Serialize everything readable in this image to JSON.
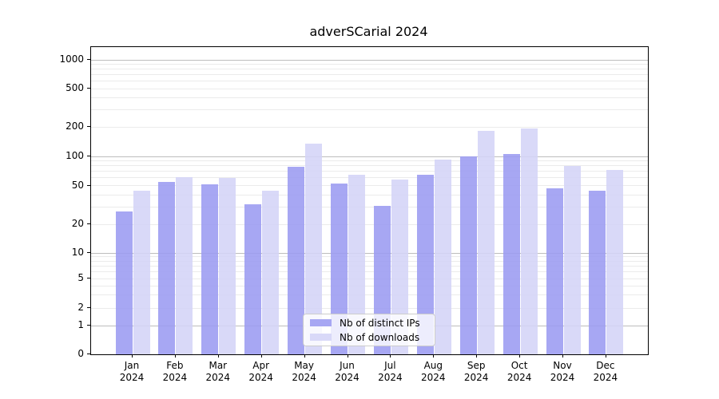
{
  "title": "adverSCarial 2024",
  "chart_data": {
    "type": "bar",
    "title": "adverSCarial 2024",
    "xlabel": "",
    "ylabel": "",
    "yscale": "symlog",
    "yticks": [
      0,
      1,
      2,
      5,
      10,
      20,
      50,
      100,
      200,
      500,
      1000
    ],
    "ylim": [
      0,
      1350
    ],
    "grid": "on",
    "legend_position": "lower center",
    "categories": [
      "Jan 2024",
      "Feb 2024",
      "Mar 2024",
      "Apr 2024",
      "May 2024",
      "Jun 2024",
      "Jul 2024",
      "Aug 2024",
      "Sep 2024",
      "Oct 2024",
      "Nov 2024",
      "Dec 2024"
    ],
    "series": [
      {
        "name": "Nb of distinct IPs",
        "color": "#9b9bf1",
        "values": [
          27,
          54,
          51,
          32,
          78,
          52,
          31,
          65,
          100,
          105,
          47,
          44
        ]
      },
      {
        "name": "Nb of downloads",
        "color": "#d4d4f7",
        "values": [
          44,
          61,
          60,
          44,
          135,
          65,
          58,
          93,
          183,
          192,
          80,
          73
        ]
      }
    ]
  },
  "colors": {
    "grid_minor": "#ebebeb",
    "grid_major": "#bdbdbd",
    "axis": "#000000",
    "background": "#ffffff"
  }
}
